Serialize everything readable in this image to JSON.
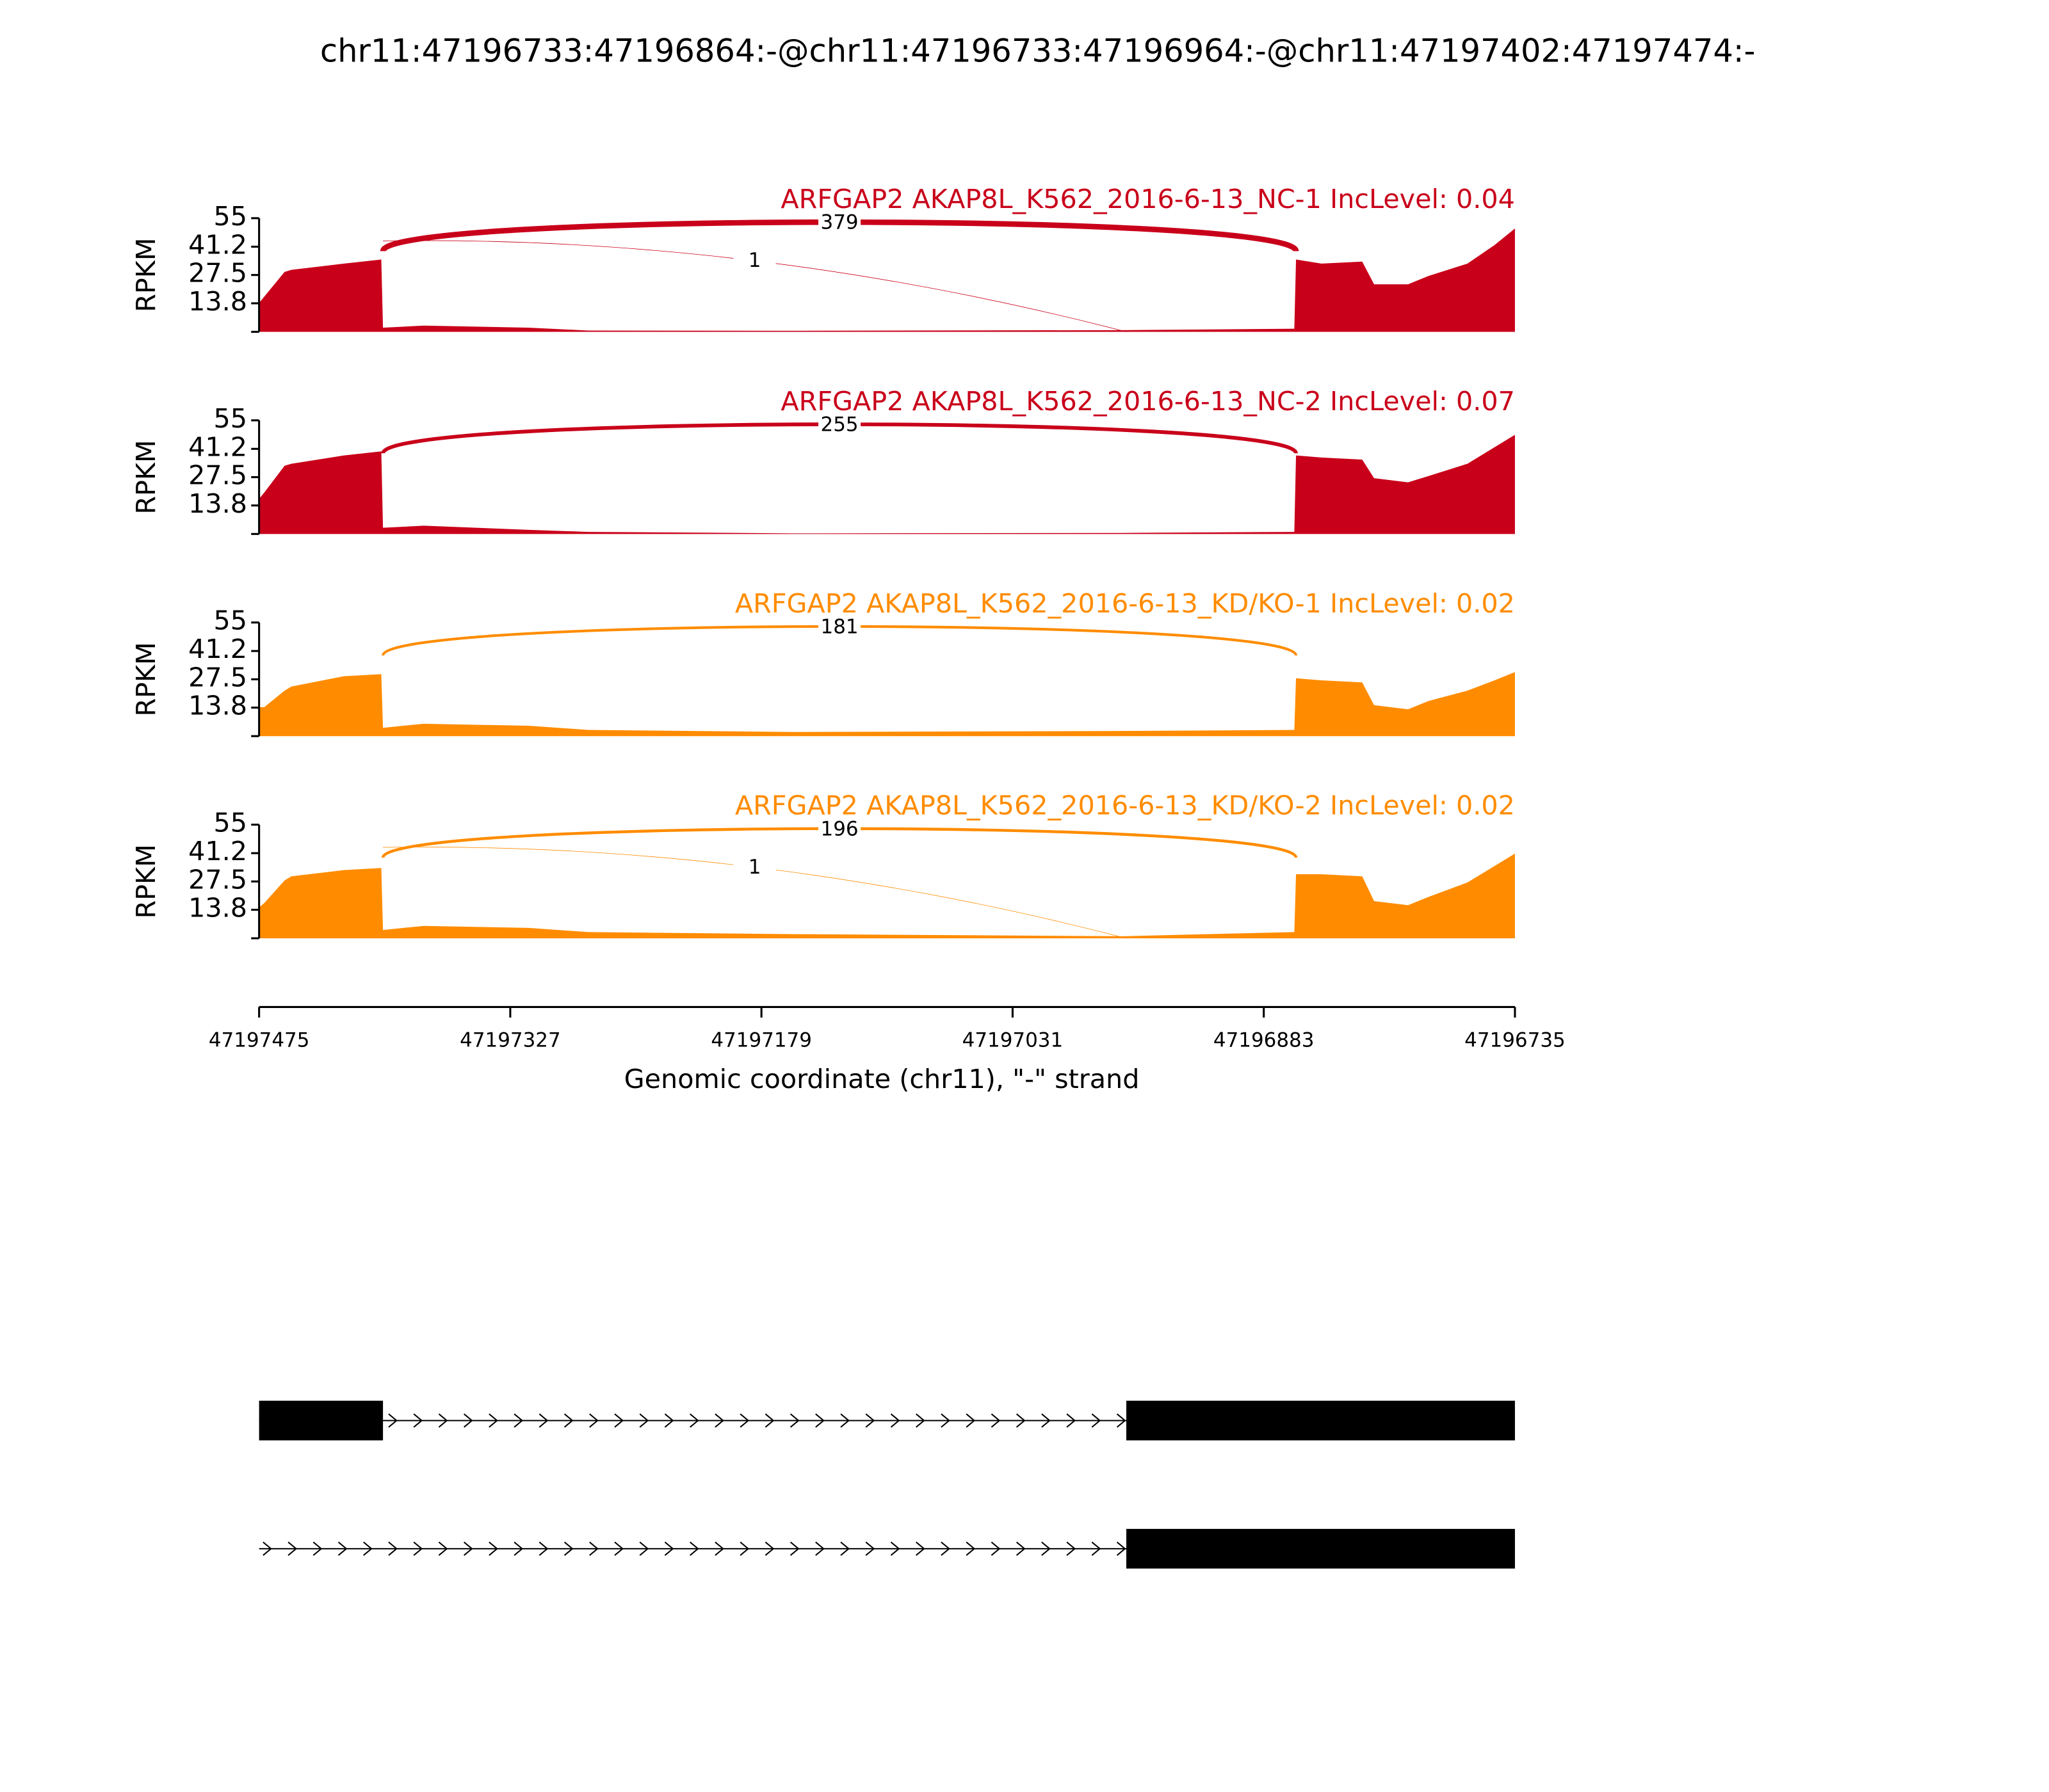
{
  "title": "chr11:47196733:47196864:-@chr11:47196733:47196964:-@chr11:47197402:47197474:-",
  "x_axis": {
    "label": "Genomic coordinate (chr11), \"-\" strand",
    "xlim": [
      47197475,
      47196735
    ],
    "xticks": [
      47197475,
      47197327,
      47197179,
      47197031,
      47196883,
      47196735
    ]
  },
  "chart_data": [
    {
      "type": "area",
      "title": "ARFGAP2 AKAP8L_K562_2016-6-13_NC-1 IncLevel: 0.04",
      "ylabel": "RPKM",
      "color": "#c9001a",
      "ylim": [
        0,
        55
      ],
      "yticks": [
        13.8,
        27.5,
        41.2,
        55
      ],
      "x": [
        47197475,
        47197472,
        47197460,
        47197456,
        47197425,
        47197403,
        47197402,
        47197378,
        47197316,
        47197281,
        47197160,
        47196966,
        47196865,
        47196864,
        47196849,
        47196825,
        47196818,
        47196798,
        47196786,
        47196763,
        47196747,
        47196735
      ],
      "values": [
        14,
        17,
        29,
        30,
        33,
        35,
        2,
        3,
        2,
        0.6,
        0.5,
        0.8,
        1.5,
        35,
        33,
        34,
        23,
        23,
        27,
        33,
        42,
        50
      ],
      "junctions": [
        {
          "start": 47197402,
          "end": 47196864,
          "count": 379
        },
        {
          "start": 47197402,
          "end": 47196964,
          "count": 1
        }
      ]
    },
    {
      "type": "area",
      "title": "ARFGAP2 AKAP8L_K562_2016-6-13_NC-2 IncLevel: 0.07",
      "ylabel": "RPKM",
      "color": "#c9001a",
      "ylim": [
        0,
        55
      ],
      "yticks": [
        13.8,
        27.5,
        41.2,
        55
      ],
      "x": [
        47197475,
        47197472,
        47197460,
        47197456,
        47197425,
        47197403,
        47197402,
        47197378,
        47197316,
        47197281,
        47197160,
        47196966,
        47196865,
        47196864,
        47196849,
        47196825,
        47196818,
        47196798,
        47196786,
        47196763,
        47196747,
        47196735
      ],
      "values": [
        17,
        20,
        33,
        34,
        38,
        40,
        3,
        4,
        2,
        1,
        0.3,
        0.5,
        1,
        38,
        37,
        36,
        27,
        25,
        28,
        34,
        42,
        48
      ],
      "junctions": [
        {
          "start": 47197402,
          "end": 47196864,
          "count": 255
        }
      ]
    },
    {
      "type": "area",
      "title": "ARFGAP2 AKAP8L_K562_2016-6-13_KD/KO-1 IncLevel: 0.02",
      "ylabel": "RPKM",
      "color": "#ff8c00",
      "ylim": [
        0,
        55
      ],
      "yticks": [
        13.8,
        27.5,
        41.2,
        55
      ],
      "x": [
        47197475,
        47197472,
        47197460,
        47197456,
        47197425,
        47197403,
        47197402,
        47197378,
        47197316,
        47197281,
        47197160,
        47196966,
        47196865,
        47196864,
        47196849,
        47196825,
        47196818,
        47196798,
        47196786,
        47196763,
        47196747,
        47196735
      ],
      "values": [
        14,
        14,
        22,
        24,
        29,
        30,
        4,
        6,
        5,
        3,
        2,
        2.5,
        3,
        28,
        27,
        26,
        15,
        13,
        17,
        22,
        27,
        31
      ],
      "junctions": [
        {
          "start": 47197402,
          "end": 47196864,
          "count": 181
        }
      ]
    },
    {
      "type": "area",
      "title": "ARFGAP2 AKAP8L_K562_2016-6-13_KD/KO-2 IncLevel: 0.02",
      "ylabel": "RPKM",
      "color": "#ff8c00",
      "ylim": [
        0,
        55
      ],
      "yticks": [
        13.8,
        27.5,
        41.2,
        55
      ],
      "x": [
        47197475,
        47197472,
        47197460,
        47197456,
        47197425,
        47197403,
        47197402,
        47197378,
        47197316,
        47197281,
        47197160,
        47196966,
        47196865,
        47196864,
        47196849,
        47196825,
        47196818,
        47196798,
        47196786,
        47196763,
        47196747,
        47196735
      ],
      "values": [
        15,
        17,
        28,
        30,
        33,
        34,
        4,
        6,
        5,
        3,
        2,
        1,
        3,
        31,
        31,
        30,
        18,
        16,
        20,
        27,
        35,
        41
      ],
      "junctions": [
        {
          "start": 47197402,
          "end": 47196864,
          "count": 196
        },
        {
          "start": 47197402,
          "end": 47196964,
          "count": 1
        }
      ]
    }
  ],
  "genes": [
    {
      "span": [
        47197475,
        47196735
      ],
      "exons": [
        [
          47197475,
          47197402
        ],
        [
          47196964,
          47196735
        ]
      ]
    },
    {
      "span": [
        47197475,
        47196735
      ],
      "exons": [
        [
          47196964,
          47196735
        ]
      ]
    }
  ]
}
